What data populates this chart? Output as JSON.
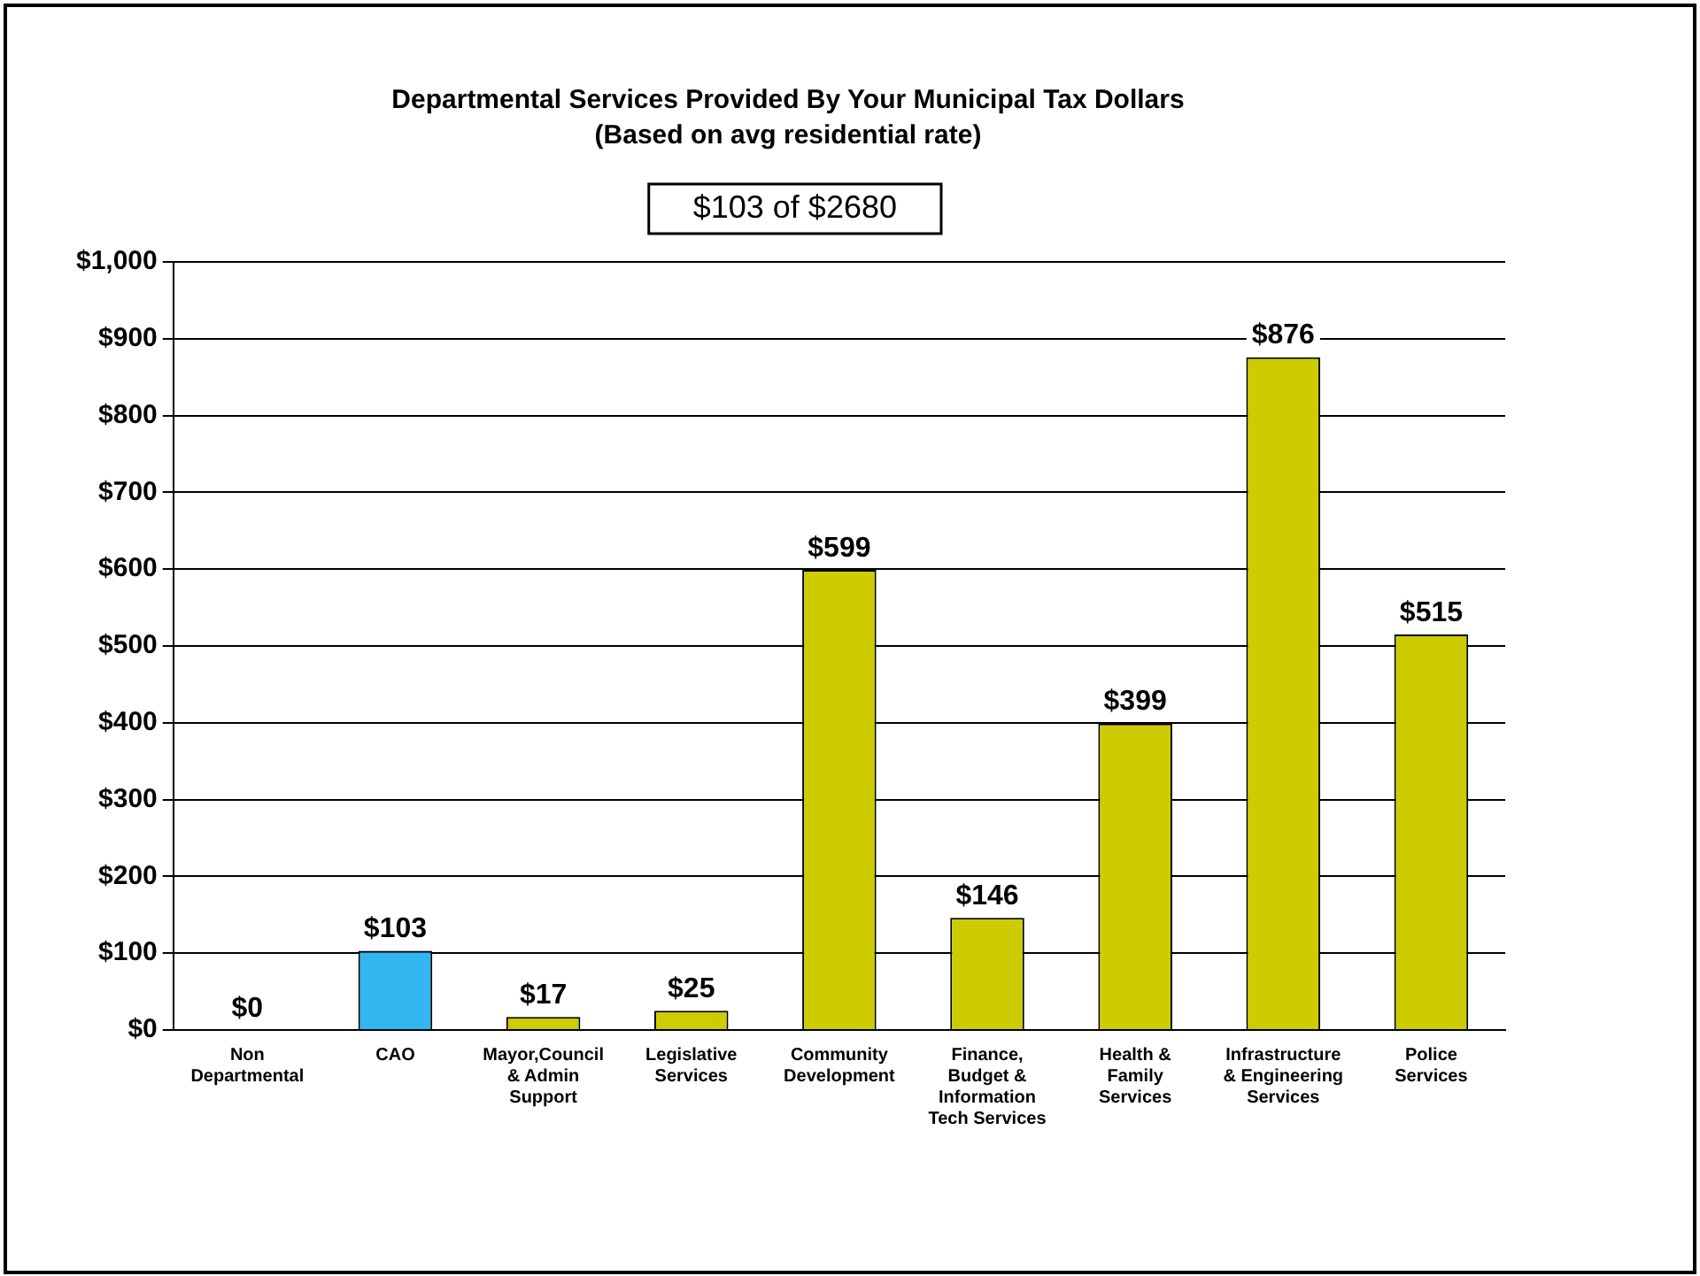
{
  "chart_data": {
    "type": "bar",
    "title": "Departmental Services Provided By Your Municipal Tax Dollars",
    "subtitle": "(Based on avg residential rate)",
    "annotations": [
      "$103 of $2680"
    ],
    "categories": [
      "Non Departmental",
      "CAO",
      "Mayor,Council & Admin Support",
      "Legislative Services",
      "Community Development",
      "Finance, Budget & Information Tech Services",
      "Health & Family Services",
      "Infrastructure & Engineering Services",
      "Police Services"
    ],
    "values": [
      0,
      103,
      17,
      25,
      599,
      146,
      399,
      876,
      515
    ],
    "colors": [
      "#cccc00",
      "#33b5f0",
      "#cccc00",
      "#cccc00",
      "#cccc00",
      "#cccc00",
      "#cccc00",
      "#cccc00",
      "#cccc00"
    ],
    "value_labels": [
      "$0",
      "$103",
      "$17",
      "$25",
      "$599",
      "$146",
      "$399",
      "$876",
      "$515"
    ],
    "ylim": [
      0,
      1000
    ],
    "yticks": [
      {
        "value": 0,
        "label": "$0"
      },
      {
        "value": 100,
        "label": "$100"
      },
      {
        "value": 200,
        "label": "$200"
      },
      {
        "value": 300,
        "label": "$300"
      },
      {
        "value": 400,
        "label": "$400"
      },
      {
        "value": 500,
        "label": "$500"
      },
      {
        "value": 600,
        "label": "$600"
      },
      {
        "value": 700,
        "label": "$700"
      },
      {
        "value": 800,
        "label": "$800"
      },
      {
        "value": 900,
        "label": "$900"
      },
      {
        "value": 1000,
        "label": "$1,000"
      }
    ],
    "grid": "y",
    "legend": false
  }
}
